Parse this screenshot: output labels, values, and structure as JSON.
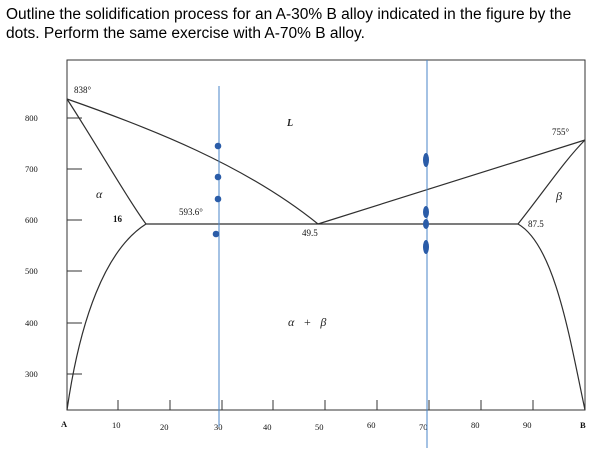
{
  "question": {
    "line1": "Outline the solidification process for an A-30% B alloy indicated in the figure by the",
    "line2": "dots. Perform the same exercise with A-70% B alloy."
  },
  "diagram": {
    "y_ticks": [
      "800",
      "700",
      "600",
      "500",
      "400",
      "300"
    ],
    "x_ticks": [
      "10",
      "20",
      "30",
      "40",
      "50",
      "60",
      "70",
      "80",
      "90"
    ],
    "x_left_label": "A",
    "x_right_label": "B",
    "annotations": {
      "melt_a": "838°",
      "melt_b": "755°",
      "eutectic_temp": "593.6°",
      "alpha_limit": "16",
      "eutectic_comp": "49.5",
      "beta_limit": "87.5"
    },
    "phases": {
      "liquid": "L",
      "alpha": "α",
      "beta": "β",
      "two_phase": "α   +   β"
    },
    "colors": {
      "phase_lines": "#2f2f2f",
      "alloy_lines": "#4a86c8",
      "dots": "#2a5ca8"
    }
  }
}
